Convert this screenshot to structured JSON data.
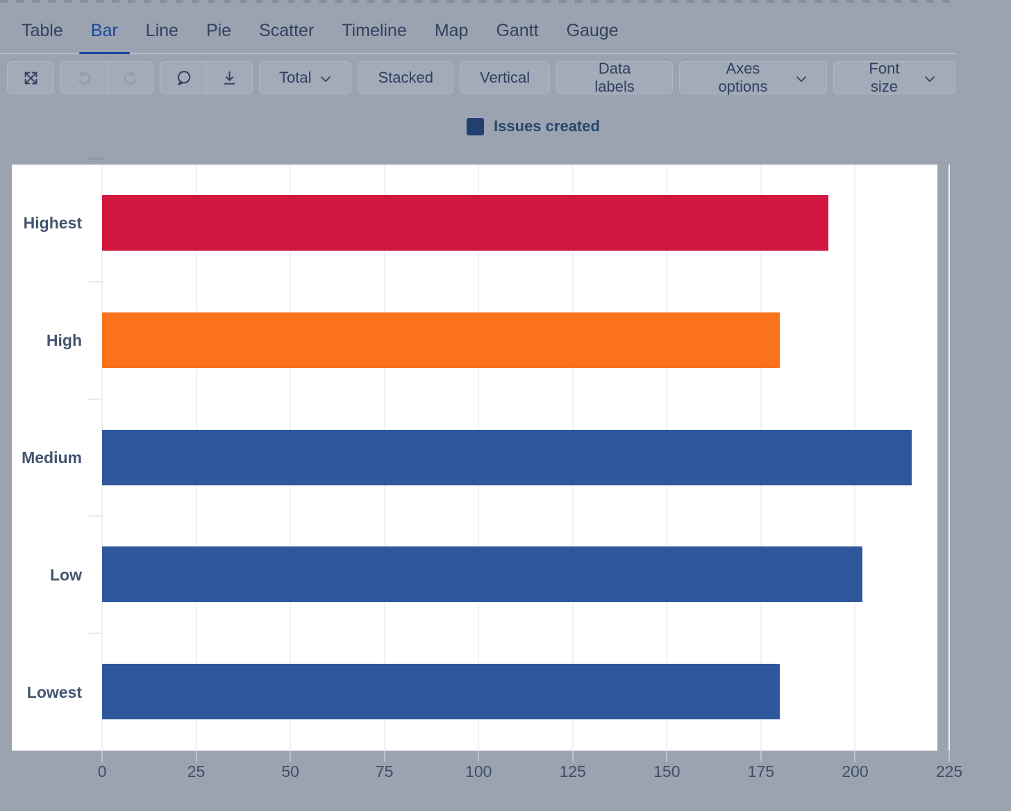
{
  "tabs": {
    "items": [
      {
        "label": "Table",
        "active": false
      },
      {
        "label": "Bar",
        "active": true
      },
      {
        "label": "Line",
        "active": false
      },
      {
        "label": "Pie",
        "active": false
      },
      {
        "label": "Scatter",
        "active": false
      },
      {
        "label": "Timeline",
        "active": false
      },
      {
        "label": "Map",
        "active": false
      },
      {
        "label": "Gantt",
        "active": false
      },
      {
        "label": "Gauge",
        "active": false
      }
    ]
  },
  "toolbar": {
    "icon_groups": [
      {
        "items": [
          {
            "icon": "expand-icon",
            "disabled": false
          }
        ]
      },
      {
        "items": [
          {
            "icon": "undo-icon",
            "disabled": true
          },
          {
            "icon": "redo-icon",
            "disabled": true
          }
        ]
      },
      {
        "items": [
          {
            "icon": "comment-icon",
            "disabled": false
          },
          {
            "icon": "download-icon",
            "disabled": false
          }
        ]
      }
    ],
    "buttons": [
      {
        "label": "Total",
        "chevron": true
      },
      {
        "label": "Stacked",
        "chevron": false
      },
      {
        "label": "Vertical",
        "chevron": false
      },
      {
        "label": "Data labels",
        "chevron": false
      },
      {
        "label": "Axes options",
        "chevron": true
      },
      {
        "label": "Font size",
        "chevron": true
      }
    ]
  },
  "legend": {
    "label": "Issues created",
    "swatch_color": "#20416f"
  },
  "chart_data": {
    "type": "bar",
    "orientation": "horizontal",
    "title": "",
    "xlabel": "",
    "ylabel": "",
    "categories": [
      "Highest",
      "High",
      "Medium",
      "Low",
      "Lowest"
    ],
    "series": [
      {
        "name": "Issues created",
        "values": [
          193,
          180,
          215,
          202,
          180
        ]
      }
    ],
    "bar_colors": [
      "#d1173f",
      "#fb721c",
      "#2f579b",
      "#2f579b",
      "#2f579b"
    ],
    "xlim": [
      0,
      225
    ],
    "x_ticks": [
      0,
      25,
      50,
      75,
      100,
      125,
      150,
      175,
      200,
      225
    ],
    "grid": true,
    "legend_entries": [
      "Issues created"
    ],
    "legend_position": "top"
  },
  "colors": {
    "background": "#9ba3b1",
    "panel": "#ffffff",
    "active_tab": "#1748a0",
    "bar_red": "#d1173f",
    "bar_orange": "#fb721c",
    "bar_blue": "#2f579b",
    "gridline": "#f1f1f1"
  }
}
